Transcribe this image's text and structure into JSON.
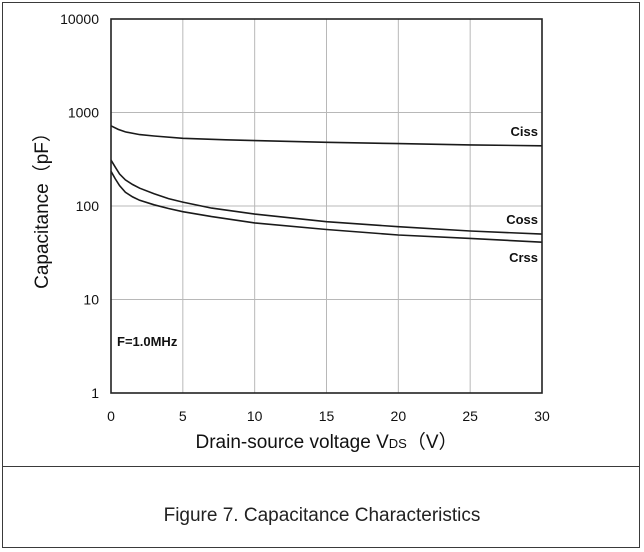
{
  "chart_data": {
    "type": "line",
    "xlabel_main": "Drain-source voltage V",
    "xlabel_sub": "DS",
    "xlabel_unit": "（V）",
    "ylabel": "Capacitance（pF）",
    "xlim": [
      0,
      30
    ],
    "ylim": [
      1,
      10000
    ],
    "yscale": "log",
    "grid": true,
    "x_ticks": [
      "0",
      "5",
      "10",
      "15",
      "20",
      "25",
      "30"
    ],
    "y_ticks": [
      "1",
      "10",
      "100",
      "1000",
      "10000"
    ],
    "annotation": "F=1.0MHz",
    "series": [
      {
        "name": "Ciss",
        "x": [
          0,
          0.5,
          1,
          2,
          3,
          5,
          8,
          10,
          15,
          20,
          25,
          30
        ],
        "y": [
          720,
          660,
          620,
          580,
          560,
          530,
          510,
          500,
          480,
          465,
          450,
          440
        ]
      },
      {
        "name": "Coss",
        "x": [
          0,
          0.3,
          0.6,
          1,
          1.5,
          2,
          3,
          4,
          5,
          7,
          10,
          15,
          20,
          25,
          30
        ],
        "y": [
          310,
          260,
          220,
          190,
          170,
          155,
          135,
          120,
          110,
          95,
          82,
          68,
          60,
          54,
          50
        ]
      },
      {
        "name": "Crss",
        "x": [
          0,
          0.3,
          0.6,
          1,
          1.5,
          2,
          3,
          4,
          5,
          7,
          10,
          15,
          20,
          25,
          30
        ],
        "y": [
          235,
          195,
          165,
          140,
          125,
          115,
          103,
          94,
          87,
          77,
          66,
          56,
          49,
          45,
          41
        ]
      }
    ]
  },
  "caption": "Figure 7. Capacitance Characteristics"
}
